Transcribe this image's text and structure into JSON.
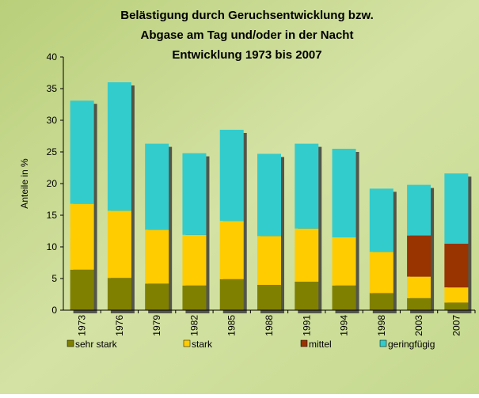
{
  "chart_data": {
    "type": "stacked-bar",
    "title": [
      "Belästigung durch Geruchsentwicklung bzw.",
      "Abgase am Tag und/oder in der Nacht",
      "Entwicklung 1973 bis 2007"
    ],
    "y_label": "Anteile in %",
    "categories": [
      "1973",
      "1976",
      "1979",
      "1982",
      "1985",
      "1988",
      "1991",
      "1994",
      "1998",
      "2003",
      "2007"
    ],
    "series": [
      {
        "name": "sehr stark",
        "color": "#808000",
        "values": [
          6.4,
          5.1,
          4.2,
          3.9,
          4.9,
          4.0,
          4.5,
          3.9,
          2.7,
          1.9,
          1.2
        ]
      },
      {
        "name": "stark",
        "color": "#ffcc00",
        "values": [
          10.4,
          10.6,
          8.5,
          8.0,
          9.2,
          7.7,
          8.4,
          7.6,
          6.5,
          3.4,
          2.4
        ]
      },
      {
        "name": "mittel",
        "color": "#993300",
        "values": [
          null,
          null,
          null,
          null,
          null,
          null,
          null,
          null,
          null,
          6.5,
          6.9
        ]
      },
      {
        "name": "geringfügig",
        "color": "#33cccc",
        "values": [
          16.3,
          20.3,
          13.6,
          12.9,
          14.4,
          13.0,
          13.4,
          14.0,
          10.0,
          8.0,
          11.1
        ]
      }
    ],
    "ylim": [
      0,
      40
    ],
    "yticks": [
      0,
      5,
      10,
      15,
      20,
      25,
      30,
      35,
      40
    ]
  }
}
